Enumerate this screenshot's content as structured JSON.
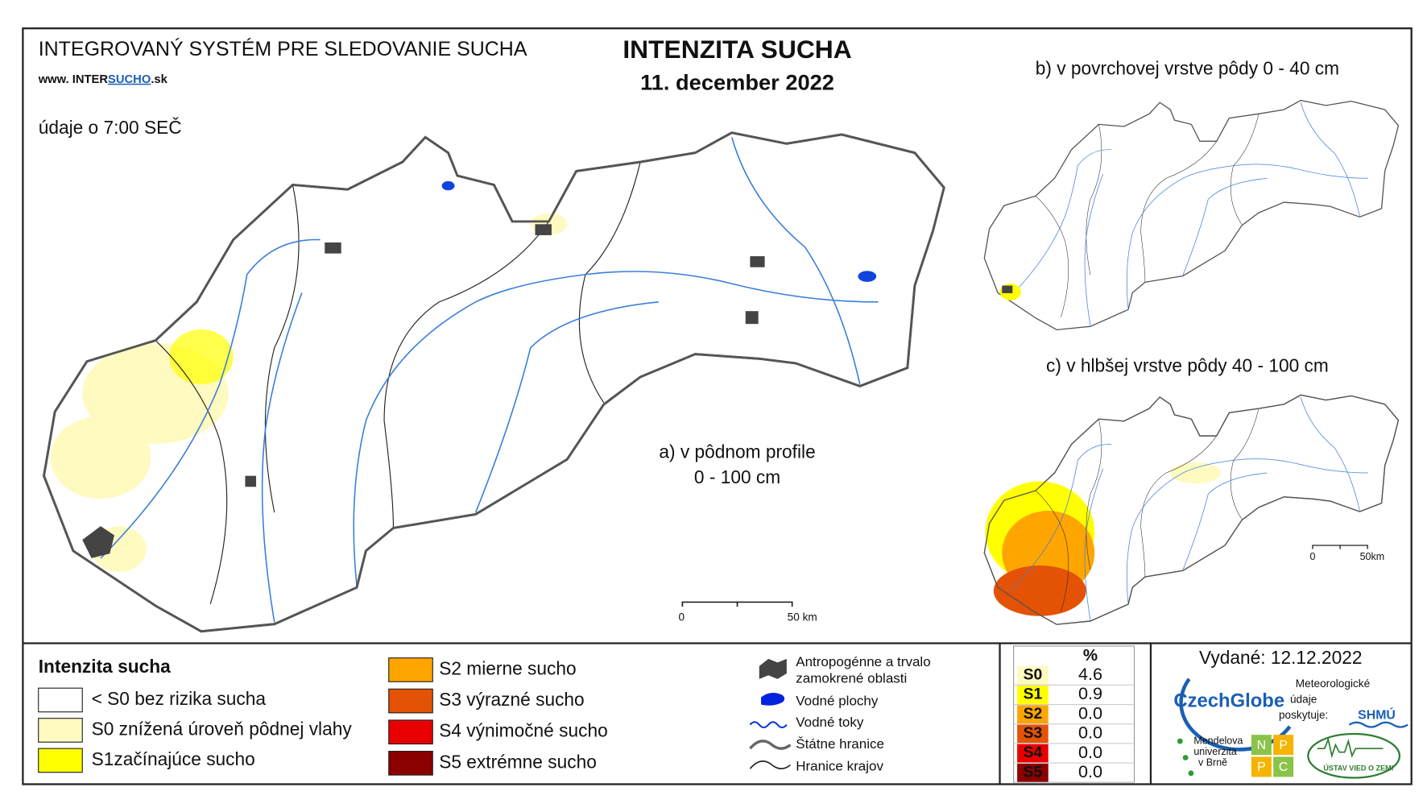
{
  "header": {
    "system": "INTEGROVANÝ SYSTÉM PRE SLEDOVANIE SUCHA",
    "website_prefix": "www. INTER",
    "website_highlight": "SUCHO",
    "website_suffix": ".sk",
    "data_time": "údaje o 7:00 SEČ"
  },
  "title": {
    "main": "INTENZITA SUCHA",
    "date": "11. december 2022"
  },
  "maps": {
    "a": {
      "label_line1": "a) v pôdnom profile",
      "label_line2": "0 - 100 cm",
      "scale_start": "0",
      "scale_end": "50 km"
    },
    "b": {
      "label": "b) v povrchovej vrstve pôdy 0 - 40 cm"
    },
    "c": {
      "label": "c) v hlbšej vrstve pôdy 40 - 100 cm",
      "scale_start": "0",
      "scale_end": "50km"
    }
  },
  "legend": {
    "title": "Intenzita sucha",
    "classes": [
      {
        "label": "< S0 bez rizika sucha",
        "color": "#ffffff"
      },
      {
        "label": "S0 znížená úroveň pôdnej vlahy",
        "color": "#fffac0"
      },
      {
        "label": "S1začínajúce sucho",
        "color": "#ffff00"
      },
      {
        "label": "S2 mierne sucho",
        "color": "#ffa500"
      },
      {
        "label": "S3 výrazné sucho",
        "color": "#e35205"
      },
      {
        "label": "S4 výnimočné sucho",
        "color": "#e80000"
      },
      {
        "label": "S5 extrémne sucho",
        "color": "#8b0000"
      }
    ]
  },
  "symbols": [
    "Antropogénne a trvalo",
    "zamokrené oblasti",
    "Vodné plochy",
    "Vodné toky",
    "Štátne hranice",
    "Hranice krajov"
  ],
  "stats": {
    "header": "%",
    "rows": [
      {
        "class": "S0",
        "value": "4.6",
        "color": "#fffac0"
      },
      {
        "class": "S1",
        "value": "0.9",
        "color": "#ffff00"
      },
      {
        "class": "S2",
        "value": "0.0",
        "color": "#ffa500"
      },
      {
        "class": "S3",
        "value": "0.0",
        "color": "#e35205"
      },
      {
        "class": "S4",
        "value": "0.0",
        "color": "#e80000"
      },
      {
        "class": "S5",
        "value": "0.0",
        "color": "#8b0000"
      }
    ]
  },
  "issued": "Vydané: 12.12.2022",
  "logos": {
    "czechglobe": "CzechGlobe",
    "meteo_line1": "Meteorologické",
    "meteo_line2": "údaje",
    "meteo_line3": "poskytuje:",
    "shmu": "SHMÚ",
    "mendel_line1": "Mendelova",
    "mendel_line2": "univerzita",
    "mendel_line3": "v Brně",
    "nppc": [
      "N",
      "P",
      "P",
      "C"
    ],
    "uvz": "ÚSTAV VIED O ZEMI"
  }
}
